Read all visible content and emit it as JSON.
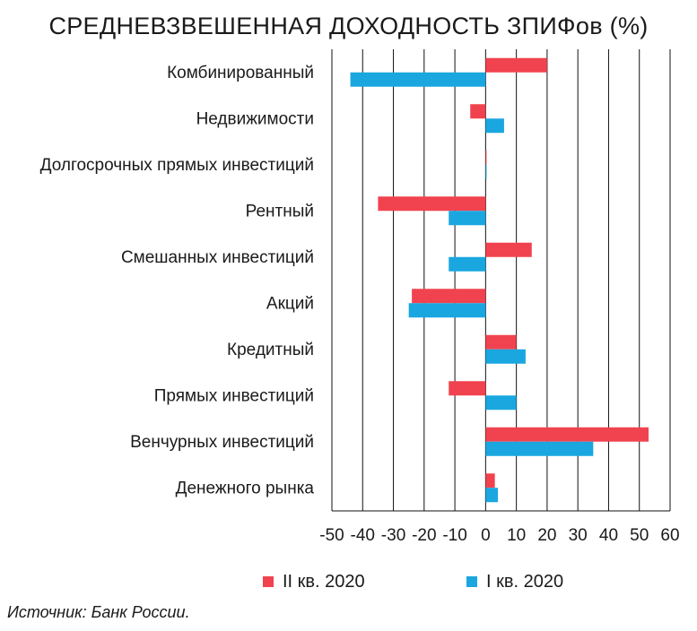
{
  "chart_data": {
    "type": "bar",
    "orientation": "horizontal",
    "title": "СРЕДНЕВЗВЕШЕННАЯ ДОХОДНОСТЬ ЗПИФов (%)",
    "categories": [
      "Комбинированный",
      "Недвижимости",
      "Долгосрочных прямых инвестиций",
      "Рентный",
      "Смешанных инвестиций",
      "Акций",
      "Кредитный",
      "Прямых инвестиций",
      "Венчурных инвестиций",
      "Денежного рынка"
    ],
    "series": [
      {
        "name": "II кв. 2020",
        "color": "#f0434f",
        "values": [
          20,
          -5,
          0,
          -35,
          15,
          -24,
          10,
          -12,
          53,
          3
        ]
      },
      {
        "name": "I кв. 2020",
        "color": "#1aa7e0",
        "values": [
          -44,
          6,
          0.3,
          -12,
          -12,
          -25,
          13,
          10,
          35,
          4
        ]
      }
    ],
    "xlim": [
      -50,
      60
    ],
    "xticks": [
      "-50",
      "-40",
      "-30",
      "-20",
      "-10",
      "0",
      "10",
      "20",
      "30",
      "40",
      "50",
      "60"
    ],
    "grid": true,
    "legend_position": "bottom"
  },
  "source": "Источник: Банк России."
}
